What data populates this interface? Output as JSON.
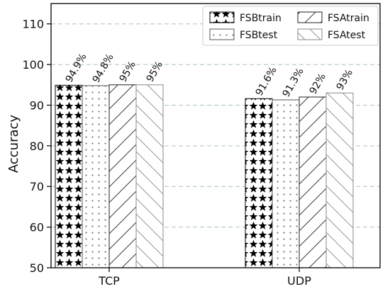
{
  "chart_data": {
    "type": "bar",
    "categories": [
      "TCP",
      "UDP"
    ],
    "series": [
      {
        "name": "FSBtrain",
        "values": [
          94.9,
          91.6
        ],
        "labels": [
          "94.9%",
          "91.6%"
        ],
        "pattern": "stars"
      },
      {
        "name": "FSBtest",
        "values": [
          94.8,
          91.3
        ],
        "labels": [
          "94.8%",
          "91.3%"
        ],
        "pattern": "dots"
      },
      {
        "name": "FSAtrain",
        "values": [
          95,
          92
        ],
        "labels": [
          "95%",
          "92%"
        ],
        "pattern": "diag-forward"
      },
      {
        "name": "FSAtest",
        "values": [
          95,
          93
        ],
        "labels": [
          "95%",
          "93%"
        ],
        "pattern": "diag-back"
      }
    ],
    "ylabel": "Accuracy",
    "xlabel": "",
    "ylim": [
      50,
      115
    ],
    "yticks": [
      50,
      60,
      70,
      80,
      90,
      100,
      110
    ],
    "grid": "horizontal dashed",
    "legend_position": "top-right",
    "legend_columns": 2,
    "colors": {
      "grid": "#a9c4b8",
      "axis": "#000000",
      "bar_edge": "#000000",
      "hatch_light": "#666666"
    }
  }
}
